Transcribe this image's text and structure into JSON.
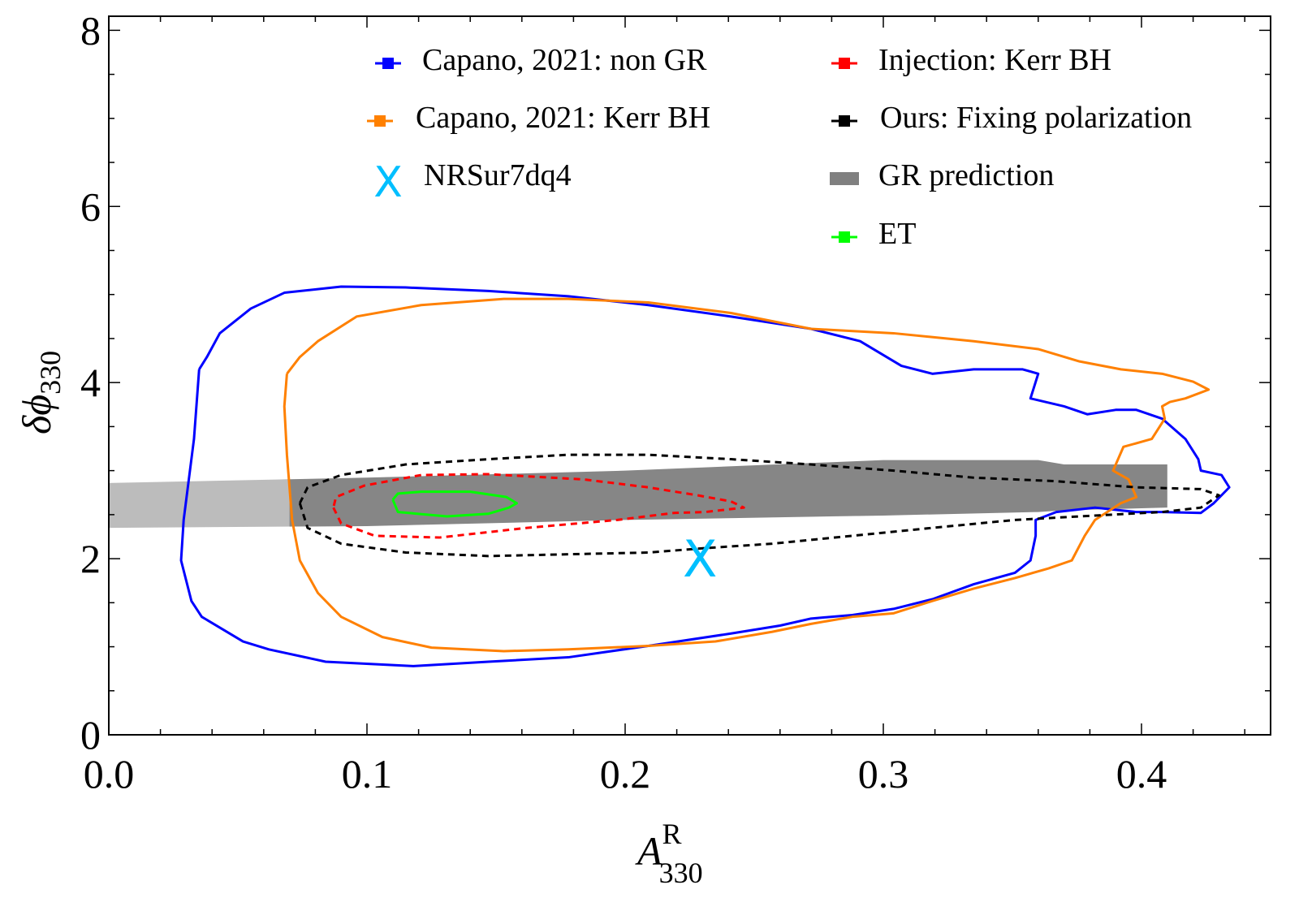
{
  "chart_data": {
    "type": "line",
    "title": "",
    "xlabel": {
      "main": "A",
      "sup": "R",
      "sub": "330"
    },
    "ylabel": {
      "main": "δϕ",
      "sub": "330"
    },
    "xlim": [
      0,
      0.45
    ],
    "ylim": [
      0,
      8.16
    ],
    "xticks": [
      0.0,
      0.1,
      0.2,
      0.3,
      0.4
    ],
    "xtick_labels": [
      "0.0",
      "0.1",
      "0.2",
      "0.3",
      "0.4"
    ],
    "yticks": [
      0,
      2,
      4,
      6,
      8
    ],
    "ytick_labels": [
      "0",
      "2",
      "4",
      "6",
      "8"
    ],
    "grid": false,
    "legend_placement": "top",
    "series": [
      {
        "name": "Capano, 2021: non GR",
        "color": "#0000ff",
        "style": "solid",
        "x": [
          0.035,
          0.033,
          0.029,
          0.028,
          0.032,
          0.036,
          0.052,
          0.062,
          0.084,
          0.118,
          0.147,
          0.178,
          0.209,
          0.241,
          0.26,
          0.272,
          0.288,
          0.304,
          0.319,
          0.335,
          0.351,
          0.357,
          0.359,
          0.359,
          0.367,
          0.382,
          0.398,
          0.408,
          0.423,
          0.428,
          0.434,
          0.431,
          0.423,
          0.422,
          0.417,
          0.408,
          0.398,
          0.39,
          0.379,
          0.37,
          0.357,
          0.36,
          0.354,
          0.335,
          0.319,
          0.307,
          0.291,
          0.272,
          0.241,
          0.209,
          0.178,
          0.147,
          0.115,
          0.09,
          0.068,
          0.055,
          0.043,
          0.038,
          0.035
        ],
        "y": [
          4.15,
          3.36,
          2.44,
          1.98,
          1.52,
          1.34,
          1.06,
          0.97,
          0.83,
          0.78,
          0.83,
          0.88,
          1.01,
          1.15,
          1.24,
          1.32,
          1.36,
          1.43,
          1.54,
          1.71,
          1.84,
          1.98,
          2.26,
          2.44,
          2.53,
          2.58,
          2.53,
          2.53,
          2.52,
          2.63,
          2.81,
          2.95,
          3.0,
          3.13,
          3.36,
          3.59,
          3.69,
          3.69,
          3.64,
          3.73,
          3.82,
          4.1,
          4.15,
          4.15,
          4.1,
          4.19,
          4.47,
          4.61,
          4.75,
          4.88,
          4.98,
          5.04,
          5.08,
          5.09,
          5.02,
          4.84,
          4.56,
          4.29,
          4.15
        ]
      },
      {
        "name": "Capano, 2021: Kerr BH",
        "color": "#ff8000",
        "style": "solid",
        "x": [
          0.069,
          0.068,
          0.069,
          0.071,
          0.074,
          0.081,
          0.09,
          0.106,
          0.125,
          0.153,
          0.178,
          0.209,
          0.235,
          0.257,
          0.272,
          0.288,
          0.304,
          0.319,
          0.335,
          0.351,
          0.364,
          0.373,
          0.378,
          0.382,
          0.392,
          0.398,
          0.395,
          0.389,
          0.393,
          0.404,
          0.409,
          0.408,
          0.411,
          0.417,
          0.426,
          0.42,
          0.408,
          0.392,
          0.376,
          0.36,
          0.335,
          0.304,
          0.272,
          0.241,
          0.209,
          0.178,
          0.153,
          0.121,
          0.096,
          0.081,
          0.074,
          0.069
        ],
        "y": [
          4.1,
          3.73,
          3.18,
          2.44,
          1.98,
          1.61,
          1.34,
          1.11,
          0.99,
          0.95,
          0.97,
          1.01,
          1.06,
          1.17,
          1.26,
          1.34,
          1.38,
          1.52,
          1.66,
          1.78,
          1.89,
          1.98,
          2.26,
          2.44,
          2.63,
          2.7,
          2.9,
          3.0,
          3.27,
          3.36,
          3.59,
          3.73,
          3.78,
          3.82,
          3.92,
          4.01,
          4.1,
          4.15,
          4.24,
          4.38,
          4.47,
          4.56,
          4.61,
          4.79,
          4.91,
          4.95,
          4.95,
          4.88,
          4.75,
          4.47,
          4.29,
          4.1
        ]
      },
      {
        "name": "Injection: Kerr BH",
        "color": "#ff0000",
        "style": "dashed",
        "x": [
          0.087,
          0.09,
          0.103,
          0.128,
          0.162,
          0.197,
          0.219,
          0.231,
          0.246,
          0.241,
          0.228,
          0.209,
          0.184,
          0.147,
          0.121,
          0.099,
          0.088,
          0.087
        ],
        "y": [
          2.58,
          2.4,
          2.26,
          2.24,
          2.35,
          2.44,
          2.52,
          2.53,
          2.58,
          2.65,
          2.72,
          2.81,
          2.9,
          2.96,
          2.95,
          2.83,
          2.7,
          2.58
        ]
      },
      {
        "name": "Ours: Fixing polarization",
        "color": "#000000",
        "style": "dashed",
        "x": [
          0.074,
          0.077,
          0.09,
          0.115,
          0.147,
          0.178,
          0.209,
          0.231,
          0.257,
          0.288,
          0.319,
          0.351,
          0.382,
          0.408,
          0.423,
          0.43,
          0.423,
          0.398,
          0.367,
          0.335,
          0.304,
          0.272,
          0.241,
          0.209,
          0.178,
          0.147,
          0.115,
          0.09,
          0.077,
          0.074
        ],
        "y": [
          2.63,
          2.35,
          2.17,
          2.07,
          2.03,
          2.05,
          2.07,
          2.12,
          2.17,
          2.26,
          2.35,
          2.44,
          2.49,
          2.53,
          2.58,
          2.72,
          2.79,
          2.81,
          2.88,
          2.92,
          3.0,
          3.07,
          3.13,
          3.18,
          3.18,
          3.13,
          3.07,
          2.95,
          2.81,
          2.63
        ]
      },
      {
        "name": "ET",
        "color": "#00ff00",
        "style": "solid",
        "x": [
          0.11,
          0.112,
          0.131,
          0.147,
          0.155,
          0.158,
          0.154,
          0.14,
          0.121,
          0.112,
          0.11
        ],
        "y": [
          2.67,
          2.53,
          2.48,
          2.51,
          2.58,
          2.63,
          2.7,
          2.76,
          2.76,
          2.74,
          2.67
        ]
      }
    ],
    "band": {
      "name": "GR prediction",
      "color": "#808080",
      "x": [
        0.0,
        0.1,
        0.2,
        0.3,
        0.36,
        0.37,
        0.41
      ],
      "upper": [
        2.86,
        2.92,
        3.0,
        3.12,
        3.12,
        3.07,
        3.07
      ],
      "lower": [
        2.35,
        2.37,
        2.44,
        2.49,
        2.53,
        2.55,
        2.58
      ]
    },
    "markers": [
      {
        "name": "NRSur7dq4",
        "color": "#00bfff",
        "symbol": "X",
        "x": 0.229,
        "y": 2.0
      }
    ],
    "legend": [
      {
        "label": "Capano, 2021: non GR",
        "color": "#0000ff",
        "symbol": "bar"
      },
      {
        "label": "Capano, 2021: Kerr BH",
        "color": "#ff8000",
        "symbol": "bar"
      },
      {
        "label": "NRSur7dq4",
        "color": "#00bfff",
        "symbol": "X"
      },
      {
        "label": "Injection: Kerr BH",
        "color": "#ff0000",
        "symbol": "bar"
      },
      {
        "label": "Ours: Fixing polarization",
        "color": "#000000",
        "symbol": "bar"
      },
      {
        "label": "GR prediction",
        "color": "#808080",
        "symbol": "band"
      },
      {
        "label": "ET",
        "color": "#00ff00",
        "symbol": "bar"
      }
    ]
  }
}
